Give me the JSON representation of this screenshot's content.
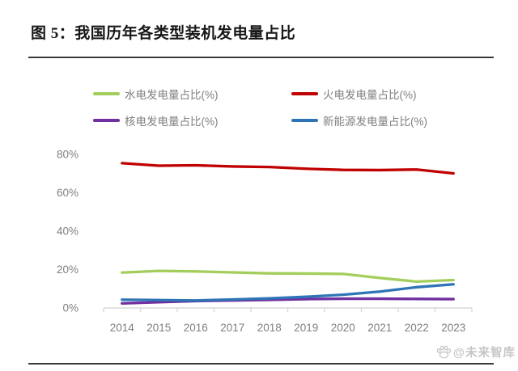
{
  "figure": {
    "title": "图 5：我国历年各类型装机发电量占比",
    "watermark_text": "@未来智库"
  },
  "chart_data": {
    "type": "line",
    "title": "我国历年各类型装机发电量占比",
    "categories": [
      "2014",
      "2015",
      "2016",
      "2017",
      "2018",
      "2019",
      "2020",
      "2021",
      "2022",
      "2023"
    ],
    "series": [
      {
        "name": "水电发电量占比(%)",
        "color": "#a3ce5b",
        "values": [
          18.4,
          19.3,
          19.0,
          18.5,
          18.0,
          17.9,
          17.7,
          15.6,
          13.7,
          14.5
        ]
      },
      {
        "name": "火电发电量占比(%)",
        "color": "#c00000",
        "values": [
          75.3,
          74.0,
          74.2,
          73.6,
          73.3,
          72.4,
          71.8,
          71.7,
          72.0,
          70.0
        ]
      },
      {
        "name": "核电发电量占比(%)",
        "color": "#7030a0",
        "values": [
          2.4,
          3.0,
          3.6,
          3.9,
          4.2,
          4.6,
          4.8,
          4.8,
          4.7,
          4.6
        ]
      },
      {
        "name": "新能源发电量占比(%)",
        "color": "#2e75b6",
        "values": [
          4.3,
          4.1,
          3.9,
          4.4,
          5.0,
          5.8,
          6.9,
          8.5,
          10.8,
          12.3
        ]
      }
    ],
    "xlabel": "",
    "ylabel": "",
    "ylim": [
      0,
      80
    ],
    "yticks": [
      80,
      60,
      40,
      20,
      0
    ],
    "ytick_suffix": "%",
    "grid": false,
    "legend_position": "top",
    "axis_color": "#d9d9d9",
    "tick_label_color": "#7f7f7f"
  }
}
